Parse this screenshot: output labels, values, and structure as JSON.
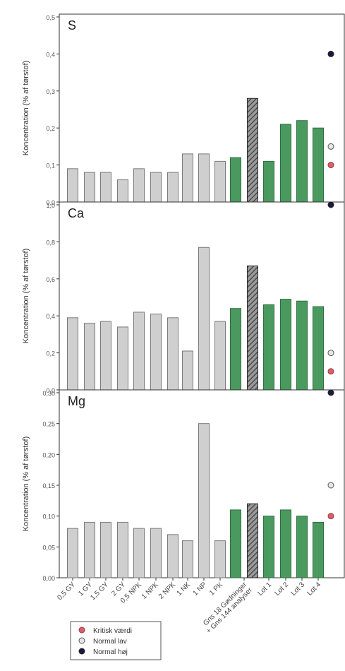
{
  "chart_data": {
    "type": "bar",
    "categories": [
      "0,5 GY",
      "1 GY",
      "1,5 GY",
      "2 GY",
      "0,5 NPK",
      "1 NPK",
      "2 NPK",
      "1 NK",
      "1 NP",
      "1 PK",
      "Gns 18 Gødninger",
      "+ Gns 144 analyser",
      "Lot 1",
      "Lot 2",
      "Lot 3",
      "Lot 4"
    ],
    "x_labels": [
      "0,5 GY",
      "1 GY",
      "1,5 GY",
      "2 GY",
      "0,5 NPK",
      "1 NPK",
      "2 NPK",
      "1 NK",
      "1 NP",
      "1 PK",
      "Gns 18 Gødninger\n+ Gns 144 analyser",
      "Lot 1",
      "Lot 2",
      "Lot 3",
      "Lot 4"
    ],
    "bar_styles": [
      "gray",
      "gray",
      "gray",
      "gray",
      "gray",
      "gray",
      "gray",
      "gray",
      "gray",
      "gray",
      "green",
      "hatched",
      "green",
      "green",
      "green",
      "green"
    ],
    "colors": {
      "gray_bar": "#cfcfcf",
      "green_bar": "#4a9a5f",
      "hatched_bar": "#5a5a5a",
      "kritisk": "#d9606a",
      "normal_lav": "#e6e6e6",
      "normal_hoej": "#1a1a40"
    },
    "panels": [
      {
        "label": "S",
        "ylabel": "Koncentration (% af tørstof)",
        "ylim": [
          0,
          0.5
        ],
        "yticks": [
          0.0,
          0.1,
          0.2,
          0.3,
          0.4,
          0.5
        ],
        "yticklabels": [
          "0,0",
          "0,1",
          "0,2",
          "0,3",
          "0,4",
          "0,5"
        ],
        "values": [
          0.09,
          0.08,
          0.08,
          0.06,
          0.09,
          0.08,
          0.08,
          0.13,
          0.13,
          0.11,
          0.12,
          0.28,
          0.11,
          0.21,
          0.22,
          0.2
        ],
        "reference": {
          "kritisk": 0.1,
          "normal_lav": 0.15,
          "normal_hoej": 0.4
        }
      },
      {
        "label": "Ca",
        "ylabel": "Koncentration (% af tørstof)",
        "ylim": [
          0,
          1.0
        ],
        "yticks": [
          0.0,
          0.2,
          0.4,
          0.6,
          0.8,
          1.0
        ],
        "yticklabels": [
          "0,0",
          "0,2",
          "0,4",
          "0,6",
          "0,8",
          "1,0"
        ],
        "values": [
          0.39,
          0.36,
          0.37,
          0.34,
          0.42,
          0.41,
          0.39,
          0.21,
          0.77,
          0.37,
          0.44,
          0.67,
          0.46,
          0.49,
          0.48,
          0.45
        ],
        "reference": {
          "kritisk": 0.1,
          "normal_lav": 0.2,
          "normal_hoej": 1.0
        }
      },
      {
        "label": "Mg",
        "ylabel": "Koncentration (% af tørstof)",
        "ylim": [
          0,
          0.3
        ],
        "yticks": [
          0.0,
          0.05,
          0.1,
          0.15,
          0.2,
          0.25,
          0.3
        ],
        "yticklabels": [
          "0,00",
          "0,05",
          "0,10",
          "0,15",
          "0,20",
          "0,25",
          "0,30"
        ],
        "values": [
          0.08,
          0.09,
          0.09,
          0.09,
          0.08,
          0.08,
          0.07,
          0.06,
          0.25,
          0.06,
          0.11,
          0.12,
          0.1,
          0.11,
          0.1,
          0.09
        ],
        "reference": {
          "kritisk": 0.1,
          "normal_lav": 0.15,
          "normal_hoej": 0.3
        }
      }
    ],
    "legend": {
      "placement": "bottom-left",
      "entries": [
        {
          "key": "kritisk",
          "label": "Kritisk værdi"
        },
        {
          "key": "normal_lav",
          "label": "Normal lav"
        },
        {
          "key": "normal_hoej",
          "label": "Normal høj"
        }
      ]
    },
    "grid": false
  }
}
